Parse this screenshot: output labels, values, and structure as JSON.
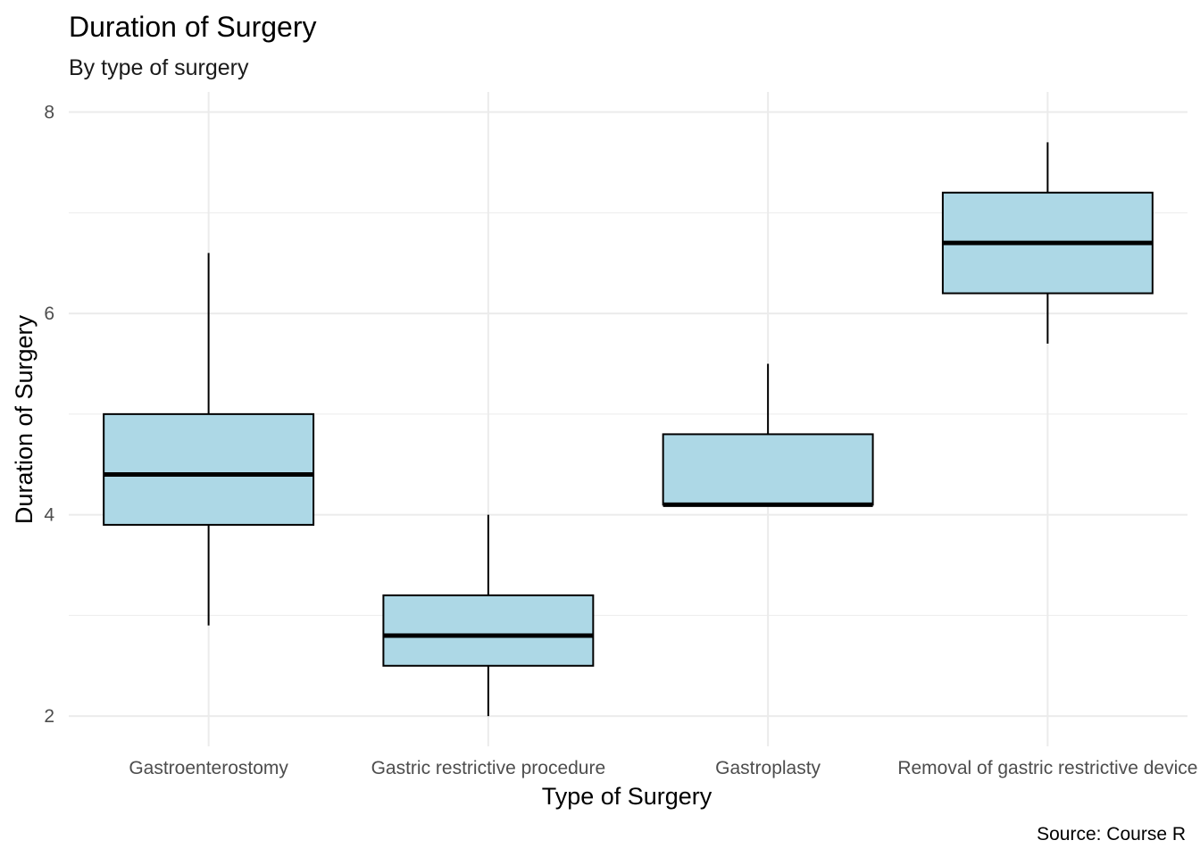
{
  "chart_data": {
    "type": "boxplot",
    "title": "Duration of Surgery",
    "subtitle": "By type of surgery",
    "xlabel": "Type of Surgery",
    "ylabel": "Duration of Surgery",
    "caption": "Source: Course R",
    "categories": [
      "Gastroenterostomy",
      "Gastric restrictive procedure",
      "Gastroplasty",
      "Removal of gastric restrictive device"
    ],
    "boxes": [
      {
        "category": "Gastroenterostomy",
        "min": 2.9,
        "q1": 3.9,
        "median": 4.4,
        "q3": 5.0,
        "max": 6.6
      },
      {
        "category": "Gastric restrictive procedure",
        "min": 2.0,
        "q1": 2.5,
        "median": 2.8,
        "q3": 3.2,
        "max": 4.0
      },
      {
        "category": "Gastroplasty",
        "min": 4.1,
        "q1": 4.1,
        "median": 4.1,
        "q3": 4.8,
        "max": 5.5
      },
      {
        "category": "Removal of gastric restrictive device",
        "min": 5.7,
        "q1": 6.2,
        "median": 6.7,
        "q3": 7.2,
        "max": 7.7
      }
    ],
    "yticks": [
      "2",
      "4",
      "6",
      "8"
    ],
    "ylim": [
      1.7,
      8.2
    ],
    "grid": true,
    "colors": {
      "box_fill": "#add8e6",
      "box_stroke": "#000000",
      "grid": "#ebebeb"
    }
  }
}
